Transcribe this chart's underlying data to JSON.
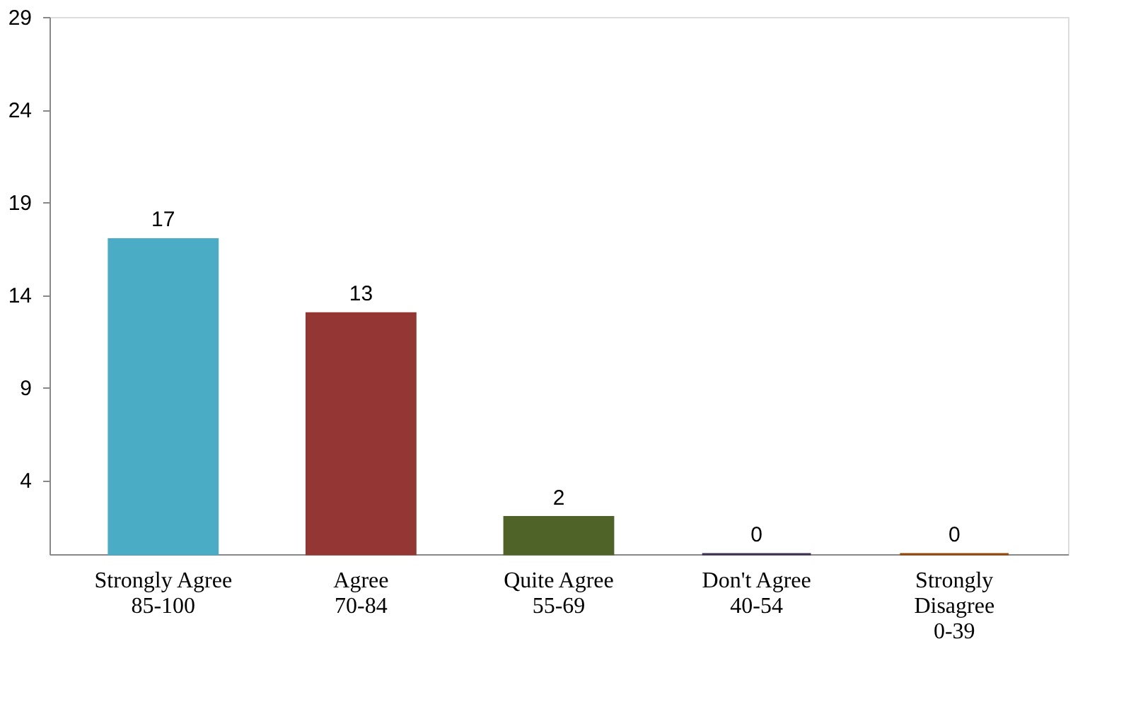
{
  "chart_data": {
    "type": "bar",
    "categories": [
      "Strongly Agree\n\n85-100",
      "Agree\n\n70-84",
      "Quite Agree\n\n\n55-69",
      "Don't Agree\n\n40-54",
      "Strongly\nDisagree\n0-39"
    ],
    "values": [
      17,
      13,
      2,
      0,
      0
    ],
    "colors": [
      "#4bacc6",
      "#943634",
      "#4f6228",
      "#3f3151",
      "#974806"
    ],
    "ylim": [
      0,
      29
    ],
    "yticks": [
      4,
      9,
      14,
      19,
      24,
      29
    ],
    "data_labels": true,
    "grid": false
  }
}
